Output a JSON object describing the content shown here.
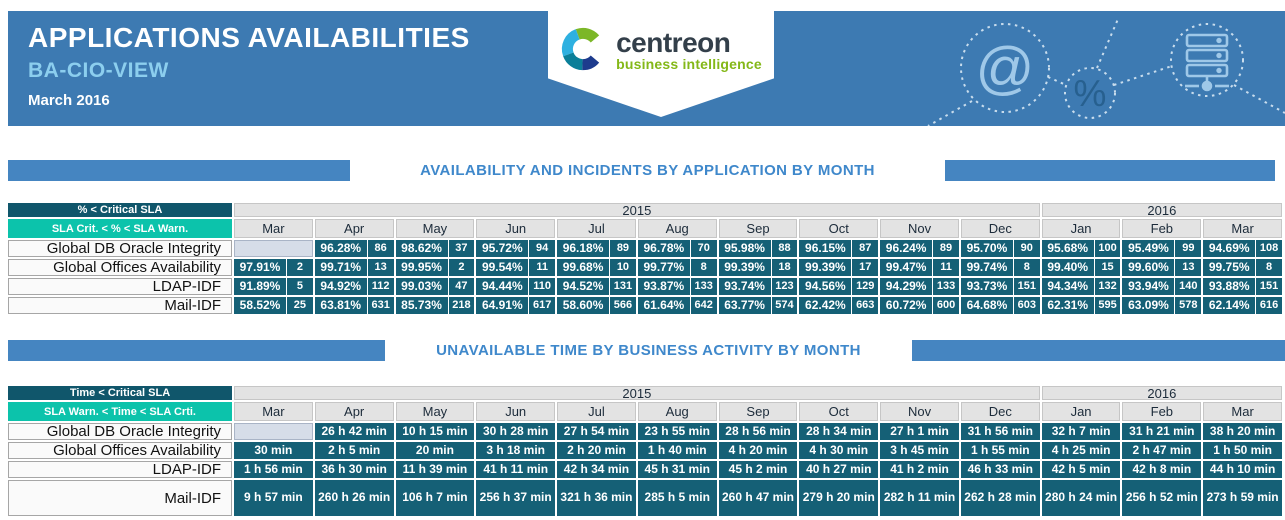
{
  "header": {
    "title": "APPLICATIONS AVAILABILITIES",
    "subtitle": "BA-CIO-VIEW",
    "period": "March 2016",
    "logo": {
      "name": "centreon",
      "tagline": "business intelligence"
    },
    "decor_icons": [
      "at-icon",
      "percent-icon",
      "server-icon"
    ]
  },
  "colors": {
    "header_bg": "#3d7ab2",
    "subtitle_blue": "#8cceee",
    "section_title_blue": "#3f88cb",
    "section_bar_blue": "#4585c1",
    "legend_critical_bg": "#10566b",
    "legend_warning_bg": "#0cc3ab",
    "data_cell_bg": "#156076",
    "empty_cell_bg": "#d6dde8",
    "header_row_bg": "#e3e3e3",
    "logo_green": "#84b818"
  },
  "months": [
    "Mar",
    "Apr",
    "May",
    "Jun",
    "Jul",
    "Aug",
    "Sep",
    "Oct",
    "Nov",
    "Dec",
    "Jan",
    "Feb",
    "Mar"
  ],
  "year_groups": [
    {
      "label": "2015",
      "span": 10
    },
    {
      "label": "2016",
      "span": 3
    }
  ],
  "sections": [
    {
      "title": "AVAILABILITY AND INCIDENTS BY APPLICATION BY MONTH",
      "legend_row1": "% < Critical SLA",
      "legend_row2": "SLA Crit. < % < SLA Warn.",
      "rows": [
        {
          "label": "Global DB Oracle Integrity",
          "cells": [
            null,
            {
              "pct": "96.28%",
              "count": "86"
            },
            {
              "pct": "98.62%",
              "count": "37"
            },
            {
              "pct": "95.72%",
              "count": "94"
            },
            {
              "pct": "96.18%",
              "count": "89"
            },
            {
              "pct": "96.78%",
              "count": "70"
            },
            {
              "pct": "95.98%",
              "count": "88"
            },
            {
              "pct": "96.15%",
              "count": "87"
            },
            {
              "pct": "96.24%",
              "count": "89"
            },
            {
              "pct": "95.70%",
              "count": "90"
            },
            {
              "pct": "95.68%",
              "count": "100"
            },
            {
              "pct": "95.49%",
              "count": "99"
            },
            {
              "pct": "94.69%",
              "count": "108"
            }
          ]
        },
        {
          "label": "Global Offices Availability",
          "cells": [
            {
              "pct": "97.91%",
              "count": "2"
            },
            {
              "pct": "99.71%",
              "count": "13"
            },
            {
              "pct": "99.95%",
              "count": "2"
            },
            {
              "pct": "99.54%",
              "count": "11"
            },
            {
              "pct": "99.68%",
              "count": "10"
            },
            {
              "pct": "99.77%",
              "count": "8"
            },
            {
              "pct": "99.39%",
              "count": "18"
            },
            {
              "pct": "99.39%",
              "count": "17"
            },
            {
              "pct": "99.47%",
              "count": "11"
            },
            {
              "pct": "99.74%",
              "count": "8"
            },
            {
              "pct": "99.40%",
              "count": "15"
            },
            {
              "pct": "99.60%",
              "count": "13"
            },
            {
              "pct": "99.75%",
              "count": "8"
            }
          ]
        },
        {
          "label": "LDAP-IDF",
          "cells": [
            {
              "pct": "91.89%",
              "count": "5"
            },
            {
              "pct": "94.92%",
              "count": "112"
            },
            {
              "pct": "99.03%",
              "count": "47"
            },
            {
              "pct": "94.44%",
              "count": "110"
            },
            {
              "pct": "94.52%",
              "count": "131"
            },
            {
              "pct": "93.87%",
              "count": "133"
            },
            {
              "pct": "93.74%",
              "count": "123"
            },
            {
              "pct": "94.56%",
              "count": "129"
            },
            {
              "pct": "94.29%",
              "count": "133"
            },
            {
              "pct": "93.73%",
              "count": "151"
            },
            {
              "pct": "94.34%",
              "count": "132"
            },
            {
              "pct": "93.94%",
              "count": "140"
            },
            {
              "pct": "93.88%",
              "count": "151"
            }
          ]
        },
        {
          "label": "Mail-IDF",
          "cells": [
            {
              "pct": "58.52%",
              "count": "25"
            },
            {
              "pct": "63.81%",
              "count": "631"
            },
            {
              "pct": "85.73%",
              "count": "218"
            },
            {
              "pct": "64.91%",
              "count": "617"
            },
            {
              "pct": "58.60%",
              "count": "566"
            },
            {
              "pct": "61.64%",
              "count": "642"
            },
            {
              "pct": "63.77%",
              "count": "574"
            },
            {
              "pct": "62.42%",
              "count": "663"
            },
            {
              "pct": "60.72%",
              "count": "600"
            },
            {
              "pct": "64.68%",
              "count": "603"
            },
            {
              "pct": "62.31%",
              "count": "595"
            },
            {
              "pct": "63.09%",
              "count": "578"
            },
            {
              "pct": "62.14%",
              "count": "616"
            }
          ]
        }
      ]
    },
    {
      "title": "UNAVAILABLE TIME BY BUSINESS ACTIVITY BY MONTH",
      "legend_row1": "Time < Critical SLA",
      "legend_row2": "SLA Warn. < Time < SLA Crti.",
      "rows": [
        {
          "label": "Global DB Oracle Integrity",
          "cells": [
            null,
            "26 h 42 min",
            "10 h 15 min",
            "30 h 28 min",
            "27 h 54 min",
            "23 h 55 min",
            "28 h 56 min",
            "28 h 34 min",
            "27 h 1 min",
            "31 h 56 min",
            "32 h 7 min",
            "31 h 21 min",
            "38 h 20 min"
          ]
        },
        {
          "label": "Global Offices Availability",
          "cells": [
            "30 min",
            "2 h 5 min",
            "20 min",
            "3 h 18 min",
            "2 h 20 min",
            "1 h 40 min",
            "4 h 20 min",
            "4 h 30 min",
            "3 h 45 min",
            "1 h 55 min",
            "4 h 25 min",
            "2 h 47 min",
            "1 h 50 min"
          ]
        },
        {
          "label": "LDAP-IDF",
          "cells": [
            "1 h 56 min",
            "36 h 30 min",
            "11 h 39 min",
            "41 h 11 min",
            "42 h 34 min",
            "45 h 31 min",
            "45 h 2 min",
            "40 h 27 min",
            "41 h 2 min",
            "46 h 33 min",
            "42 h 5 min",
            "42 h 8 min",
            "44 h 10 min"
          ]
        },
        {
          "label": "Mail-IDF",
          "cells": [
            "9 h 57 min",
            "260 h 26 min",
            "106 h 7 min",
            "256 h 37 min",
            "321 h 36 min",
            "285 h 5 min",
            "260 h 47 min",
            "279 h 20 min",
            "282 h 11 min",
            "262 h 28 min",
            "280 h 24 min",
            "256 h 52 min",
            "273 h 59 min"
          ]
        }
      ]
    }
  ]
}
